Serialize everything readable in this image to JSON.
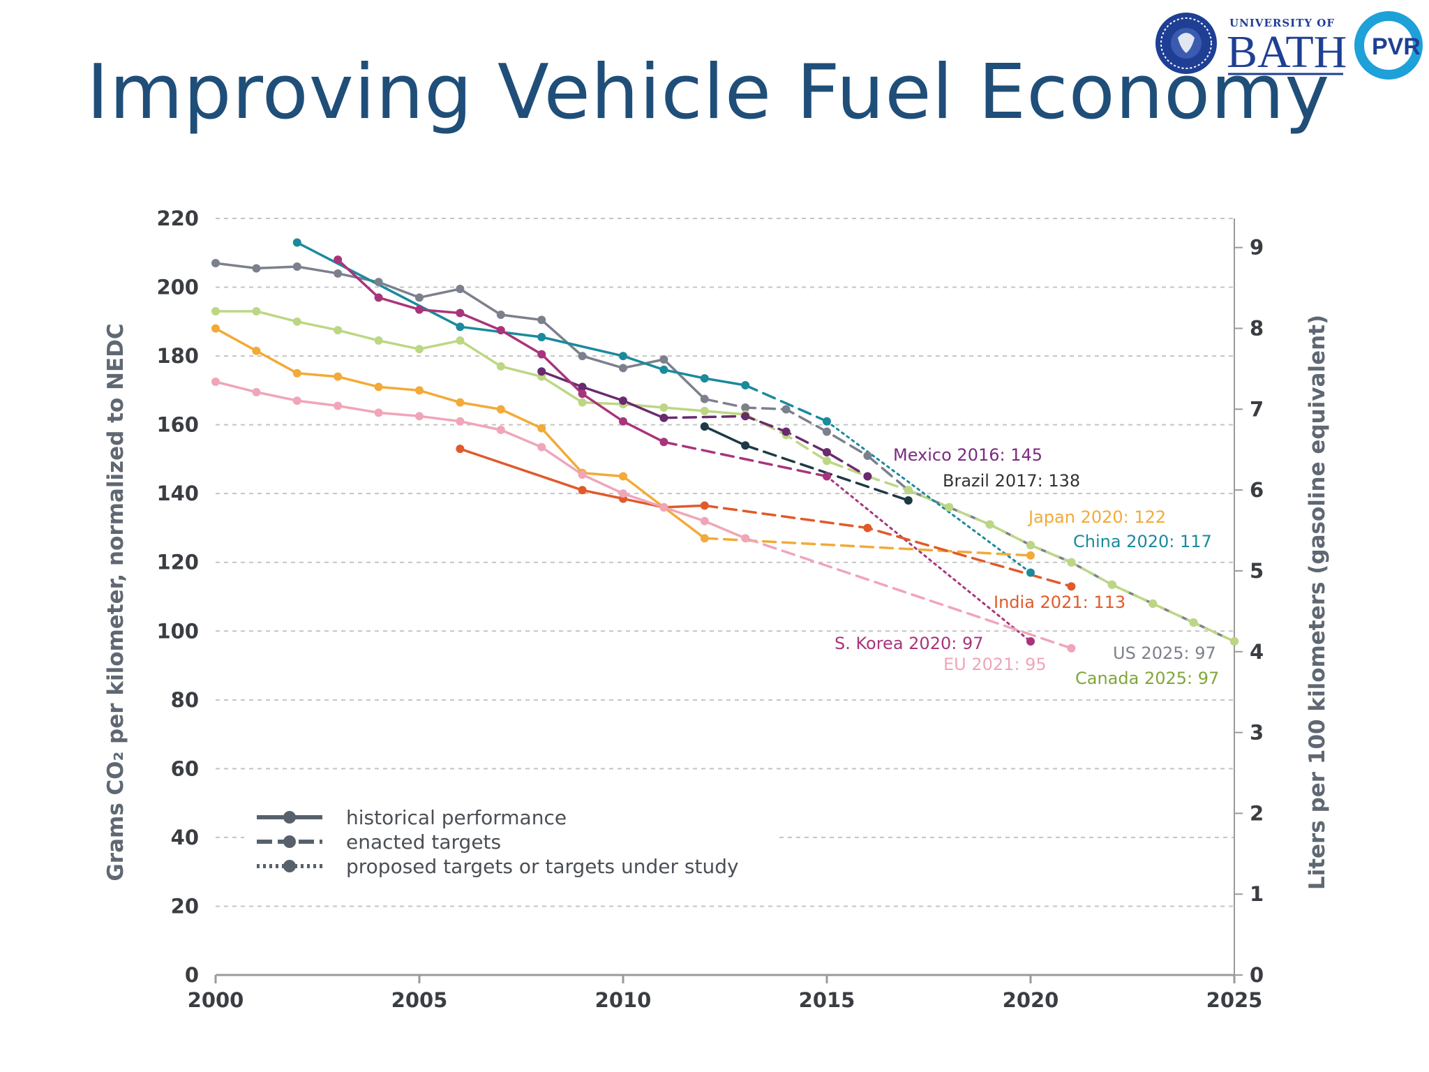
{
  "page": {
    "title": "Improving Vehicle Fuel Economy"
  },
  "logo": {
    "university_of": "UNIVERSITY OF",
    "bath": "BATH",
    "pvr": "PVR"
  },
  "chart_data": {
    "type": "line",
    "title": "",
    "xlabel": "",
    "ylabel": "Grams CO₂ per kilometer, normalized to NEDC",
    "ylabel_right": "Liters per 100 kilometers (gasoline equivalent)",
    "xlim": [
      2000,
      2025
    ],
    "ylim": [
      0,
      220
    ],
    "ylim_right": [
      0,
      9.36
    ],
    "x_ticks": [
      "2000",
      "2005",
      "2010",
      "2015",
      "2020",
      "2025"
    ],
    "y_ticks": [
      "0",
      "20",
      "40",
      "60",
      "80",
      "100",
      "120",
      "140",
      "160",
      "180",
      "200",
      "220"
    ],
    "y_ticks_right": [
      "0",
      "1",
      "2",
      "3",
      "4",
      "5",
      "6",
      "7",
      "8",
      "9"
    ],
    "grid": true,
    "legend": {
      "position": "bottom-left",
      "entries": [
        {
          "label": "historical performance",
          "style": "solid"
        },
        {
          "label": "enacted targets",
          "style": "dashed"
        },
        {
          "label": "proposed targets or targets under study",
          "style": "dotted"
        }
      ]
    },
    "series": [
      {
        "id": "us",
        "color": "#7c808c",
        "historical": [
          [
            2000,
            207
          ],
          [
            2001,
            205.5
          ],
          [
            2002,
            206
          ],
          [
            2003,
            204
          ],
          [
            2004,
            201.5
          ],
          [
            2005,
            197
          ],
          [
            2006,
            199.5
          ],
          [
            2007,
            192
          ],
          [
            2008,
            190.5
          ],
          [
            2009,
            180
          ],
          [
            2010,
            176.5
          ],
          [
            2011,
            179
          ],
          [
            2012,
            167.5
          ]
        ],
        "enacted": [
          [
            2012,
            167.5
          ],
          [
            2013,
            165
          ],
          [
            2014,
            164.5
          ],
          [
            2015,
            158
          ],
          [
            2016,
            151
          ],
          [
            2017,
            141
          ],
          [
            2018,
            136
          ],
          [
            2019,
            131
          ],
          [
            2020,
            125
          ],
          [
            2021,
            120
          ],
          [
            2022,
            113.5
          ],
          [
            2023,
            108
          ],
          [
            2024,
            102.5
          ],
          [
            2025,
            97
          ]
        ],
        "proposed": []
      },
      {
        "id": "canada",
        "color": "#bcd784",
        "historical": [
          [
            2000,
            193
          ],
          [
            2001,
            193
          ],
          [
            2002,
            190
          ],
          [
            2003,
            187.5
          ],
          [
            2004,
            184.5
          ],
          [
            2005,
            182
          ],
          [
            2006,
            184.5
          ],
          [
            2007,
            177
          ],
          [
            2008,
            174
          ],
          [
            2009,
            166.5
          ],
          [
            2010,
            166
          ],
          [
            2011,
            165
          ],
          [
            2012,
            164
          ],
          [
            2013,
            163
          ]
        ],
        "enacted": [
          [
            2013,
            163
          ],
          [
            2014,
            157
          ],
          [
            2015,
            149.5
          ],
          [
            2016,
            145
          ],
          [
            2017,
            141
          ],
          [
            2018,
            136
          ],
          [
            2019,
            131
          ],
          [
            2020,
            125
          ],
          [
            2021,
            120
          ],
          [
            2022,
            113.5
          ],
          [
            2023,
            108
          ],
          [
            2024,
            102.5
          ],
          [
            2025,
            97
          ]
        ],
        "proposed": []
      },
      {
        "id": "china",
        "color": "#1a8a9c",
        "historical": [
          [
            2002,
            213
          ],
          [
            2006,
            188.5
          ],
          [
            2008,
            185.5
          ],
          [
            2010,
            180
          ],
          [
            2011,
            176
          ],
          [
            2012,
            173.5
          ],
          [
            2013,
            171.5
          ]
        ],
        "enacted": [
          [
            2013,
            171.5
          ],
          [
            2015,
            161
          ]
        ],
        "proposed": [
          [
            2015,
            161
          ],
          [
            2020,
            117
          ]
        ]
      },
      {
        "id": "mexico",
        "color": "#6a2a6e",
        "historical": [
          [
            2008,
            175.5
          ],
          [
            2009,
            171
          ],
          [
            2010,
            167
          ],
          [
            2011,
            162
          ]
        ],
        "enacted": [
          [
            2011,
            162
          ],
          [
            2013,
            162.5
          ],
          [
            2014,
            158
          ],
          [
            2015,
            152
          ],
          [
            2016,
            145
          ]
        ],
        "proposed": []
      },
      {
        "id": "brazil",
        "color": "#1d3a44",
        "historical": [
          [
            2012,
            159.5
          ],
          [
            2013,
            154
          ]
        ],
        "enacted": [
          [
            2013,
            154
          ],
          [
            2017,
            138
          ]
        ],
        "proposed": []
      },
      {
        "id": "s_korea",
        "color": "#a8357b",
        "historical": [
          [
            2003,
            208
          ],
          [
            2004,
            197
          ],
          [
            2005,
            193.5
          ],
          [
            2006,
            192.5
          ],
          [
            2007,
            187.5
          ],
          [
            2008,
            180.5
          ],
          [
            2009,
            169
          ],
          [
            2010,
            161
          ],
          [
            2011,
            155
          ]
        ],
        "enacted": [
          [
            2011,
            155
          ],
          [
            2015,
            145
          ]
        ],
        "proposed": [
          [
            2015,
            145
          ],
          [
            2020,
            97
          ]
        ]
      },
      {
        "id": "japan",
        "color": "#f2aa38",
        "historical": [
          [
            2000,
            188
          ],
          [
            2001,
            181.5
          ],
          [
            2002,
            175
          ],
          [
            2003,
            174
          ],
          [
            2004,
            171
          ],
          [
            2005,
            170
          ],
          [
            2006,
            166.5
          ],
          [
            2007,
            164.5
          ],
          [
            2008,
            159
          ],
          [
            2009,
            146
          ],
          [
            2010,
            145
          ],
          [
            2011,
            136
          ],
          [
            2012,
            127
          ]
        ],
        "enacted": [
          [
            2012,
            127
          ],
          [
            2020,
            122
          ]
        ],
        "proposed": []
      },
      {
        "id": "india",
        "color": "#e05a2b",
        "historical": [
          [
            2006,
            153
          ],
          [
            2009,
            141
          ],
          [
            2010,
            138.5
          ],
          [
            2011,
            136
          ],
          [
            2012,
            136.5
          ]
        ],
        "enacted": [
          [
            2012,
            136.5
          ],
          [
            2016,
            130
          ],
          [
            2021,
            113
          ]
        ],
        "proposed": []
      },
      {
        "id": "eu",
        "color": "#f0a5b8",
        "historical": [
          [
            2000,
            172.5
          ],
          [
            2001,
            169.5
          ],
          [
            2002,
            167
          ],
          [
            2003,
            165.5
          ],
          [
            2004,
            163.5
          ],
          [
            2005,
            162.5
          ],
          [
            2006,
            161
          ],
          [
            2007,
            158.5
          ],
          [
            2008,
            153.5
          ],
          [
            2009,
            145.5
          ],
          [
            2010,
            140
          ],
          [
            2011,
            136
          ],
          [
            2012,
            132
          ],
          [
            2013,
            127
          ]
        ],
        "enacted": [
          [
            2013,
            127
          ],
          [
            2021,
            95
          ]
        ],
        "proposed": []
      }
    ],
    "annotations": [
      {
        "series": "mexico",
        "text": "Mexico 2016: 145"
      },
      {
        "series": "brazil",
        "text": "Brazil 2017: 138"
      },
      {
        "series": "japan",
        "text": "Japan 2020: 122"
      },
      {
        "series": "china",
        "text": "China 2020: 117"
      },
      {
        "series": "india",
        "text": "India 2021: 113"
      },
      {
        "series": "s_korea",
        "text": "S. Korea 2020: 97"
      },
      {
        "series": "us",
        "text": "US 2025: 97"
      },
      {
        "series": "eu",
        "text": "EU 2021: 95"
      },
      {
        "series": "canada",
        "text": "Canada 2025: 97"
      }
    ]
  }
}
